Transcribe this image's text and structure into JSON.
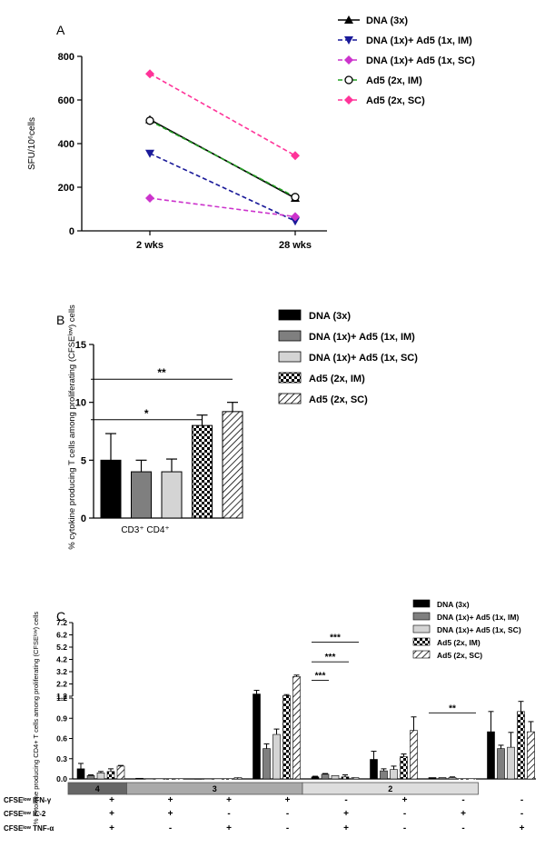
{
  "chart_data": [
    {
      "panel_label": "A",
      "type": "line",
      "categories": [
        "2 wks",
        "28 wks"
      ],
      "ylabel": "SFU/10⁶cells",
      "ylim": [
        0,
        800
      ],
      "yticks": [
        0,
        200,
        400,
        600,
        800
      ],
      "grid": false,
      "legend_position": "top-right",
      "series": [
        {
          "name": "DNA (3x)",
          "values": [
            510,
            150
          ],
          "color": "#000000",
          "marker": "triangle-up",
          "dash": "solid"
        },
        {
          "name": "DNA (1x)+ Ad5 (1x, IM)",
          "values": [
            355,
            45
          ],
          "color": "#1a1a99",
          "marker": "triangle-down",
          "dash": "dashed"
        },
        {
          "name": "DNA (1x)+ Ad5 (1x, SC)",
          "values": [
            150,
            65
          ],
          "color": "#cc33cc",
          "marker": "diamond",
          "dash": "dashed"
        },
        {
          "name": "Ad5 (2x, IM)",
          "values": [
            505,
            155
          ],
          "color": "#22a022",
          "marker": "circle-open",
          "dash": "dashed"
        },
        {
          "name": "Ad5 (2x, SC)",
          "values": [
            720,
            345
          ],
          "color": "#ff3399",
          "marker": "diamond",
          "dash": "dashed"
        }
      ]
    },
    {
      "panel_label": "B",
      "type": "bar",
      "categories": [
        "CD3⁺ CD4⁺"
      ],
      "ylabel": "% cytokine producing T cells among proliferating (CFSEˡᵒʷ) cells",
      "ylim": [
        0,
        15
      ],
      "yticks": [
        0,
        5,
        10,
        15
      ],
      "legend_position": "right",
      "series": [
        {
          "name": "DNA (3x)",
          "values": [
            5.0
          ],
          "error": [
            2.3
          ],
          "fill": "black"
        },
        {
          "name": "DNA (1x)+ Ad5 (1x, IM)",
          "values": [
            4.0
          ],
          "error": [
            1.0
          ],
          "fill": "darkgray"
        },
        {
          "name": "DNA (1x)+ Ad5 (1x, SC)",
          "values": [
            4.0
          ],
          "error": [
            1.1
          ],
          "fill": "lightgray"
        },
        {
          "name": "Ad5 (2x, IM)",
          "values": [
            8.0
          ],
          "error": [
            0.9
          ],
          "fill": "checker"
        },
        {
          "name": "Ad5 (2x, SC)",
          "values": [
            9.2
          ],
          "error": [
            0.8
          ],
          "fill": "hatch"
        }
      ],
      "significance": [
        {
          "from": "DNA (3x)",
          "to": "Ad5 (2x, IM)",
          "label": "*"
        },
        {
          "from": "DNA (3x)",
          "to": "Ad5 (2x, SC)",
          "label": "**"
        }
      ]
    },
    {
      "panel_label": "C",
      "type": "bar",
      "ylabel": "% cytokine producing CD4+ T cells among proliferating (CFSEˡᵒʷ) cells",
      "yticks_upper": [
        "1.2",
        "2.2",
        "3.2",
        "4.2",
        "5.2",
        "6.2",
        "7.2"
      ],
      "yticks_lower": [
        "0.0",
        "0.3",
        "0.6",
        "0.9",
        "1.2"
      ],
      "ylim": [
        0,
        7.2
      ],
      "axis_break": 1.2,
      "legend_position": "top-right",
      "series_names": [
        "DNA (3x)",
        "DNA (1x)+ Ad5 (1x, IM)",
        "DNA (1x)+ Ad5 (1x, SC)",
        "Ad5 (2x, IM)",
        "Ad5 (2x, SC)"
      ],
      "group_labels": [
        {
          "label": "4",
          "span": 1
        },
        {
          "label": "3",
          "span": 3
        },
        {
          "label": "2",
          "span": 3
        }
      ],
      "row_labels": [
        "CFSEˡᵒʷ IFN-γ",
        "CFSEˡᵒʷ IL-2",
        "CFSEˡᵒʷ TNF-α"
      ],
      "combinations": [
        {
          "ifn": "+",
          "il2": "+",
          "tnf": "+",
          "values": [
            0.15,
            0.05,
            0.09,
            0.11,
            0.19
          ],
          "errors": [
            0.08,
            0.01,
            0.02,
            0.04,
            0.01
          ]
        },
        {
          "ifn": "+",
          "il2": "+",
          "tnf": "-",
          "values": [
            0.01,
            0.0,
            0.0,
            0.0,
            0.0
          ],
          "errors": [
            0.0,
            0.0,
            0.0,
            0.0,
            0.0
          ]
        },
        {
          "ifn": "+",
          "il2": "-",
          "tnf": "+",
          "values": [
            0.0,
            0.0,
            0.0,
            0.0,
            0.02
          ],
          "errors": [
            0.0,
            0.0,
            0.0,
            0.0,
            0.0
          ]
        },
        {
          "ifn": "+",
          "il2": "-",
          "tnf": "-",
          "values": [
            1.38,
            0.45,
            0.66,
            1.25,
            2.8
          ],
          "errors": [
            0.3,
            0.07,
            0.08,
            0.08,
            0.12
          ]
        },
        {
          "ifn": "-",
          "il2": "+",
          "tnf": "+",
          "values": [
            0.03,
            0.07,
            0.05,
            0.03,
            0.02
          ],
          "errors": [
            0.01,
            0.01,
            0.0,
            0.03,
            0.0
          ]
        },
        {
          "ifn": "+",
          "il2": "-",
          "tnf": "-",
          "values": [
            0.29,
            0.12,
            0.14,
            0.33,
            0.72
          ],
          "errors": [
            0.12,
            0.03,
            0.05,
            0.04,
            0.2
          ]
        },
        {
          "ifn": "-",
          "il2": "+",
          "tnf": "-",
          "values": [
            0.02,
            0.02,
            0.02,
            0.0,
            0.0
          ],
          "errors": [
            0.0,
            0.0,
            0.01,
            0.0,
            0.0
          ]
        },
        {
          "ifn": "-",
          "il2": "-",
          "tnf": "+",
          "values": [
            0.7,
            0.45,
            0.47,
            1.0,
            0.7
          ],
          "errors": [
            0.3,
            0.05,
            0.22,
            0.15,
            0.15
          ]
        }
      ],
      "significance": [
        {
          "combination": 4,
          "from": "DNA (3x)",
          "to": "DNA (1x)+ Ad5 (1x, IM)",
          "label": "***"
        },
        {
          "combination": 4,
          "from": "DNA (3x)",
          "to": "Ad5 (2x, IM)",
          "label": "***"
        },
        {
          "combination": 4,
          "from": "DNA (3x)",
          "to": "Ad5 (2x, SC)",
          "label": "***"
        },
        {
          "combination": 6,
          "from": "DNA (3x)",
          "to": "Ad5 (2x, SC)",
          "label": "**"
        }
      ]
    }
  ]
}
